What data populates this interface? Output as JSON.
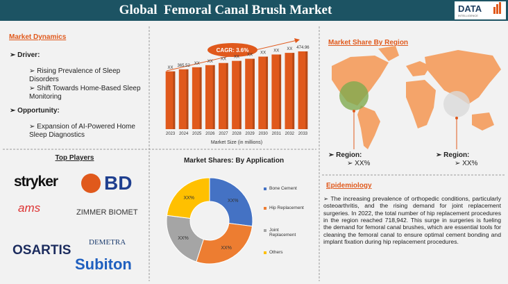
{
  "header": {
    "title": "Global  Femoral Canal Brush Market",
    "logo": "DATA",
    "logo_sub": "INTELLIGENCE"
  },
  "market_dynamics": {
    "title": "Market Dynamics",
    "driver": "Driver:",
    "drivers": [
      "Rising Prevalence of Sleep Disorders",
      "Shift Towards Home-Based Sleep Monitoring"
    ],
    "opportunity": "Opportunity:",
    "opportunities": [
      "Expansion of AI-Powered Home Sleep Diagnostics"
    ]
  },
  "chart_data": [
    {
      "type": "bar",
      "annotation": "CAGR: 3.6%",
      "x_label": "Market Size (in millions)",
      "color": "#e0591c",
      "categories": [
        "2023",
        "2024",
        "2025",
        "2026",
        "2027",
        "2028",
        "2029",
        "2030",
        "2031",
        "2032",
        "2033"
      ],
      "values": [
        353,
        365.52,
        378,
        391,
        404,
        417,
        430,
        443,
        456,
        466,
        474.96
      ],
      "value_labels": [
        "XX",
        "365.52",
        "XX",
        "XX",
        "XX",
        "XX",
        "XX",
        "XX",
        "XX",
        "XX",
        "474.96"
      ]
    },
    {
      "type": "donut",
      "title": "Market Shares: By Application",
      "categories": [
        "Bone Cement",
        "Hip Replacement",
        "Joint Replacement",
        "Others"
      ],
      "values": [
        27,
        28,
        22,
        23
      ],
      "value_labels": [
        "XX%",
        "XX%",
        "XX%",
        "XX%"
      ],
      "colors": [
        "#4472c4",
        "#ed7d31",
        "#a5a5a5",
        "#ffc000"
      ]
    }
  ],
  "top_players": {
    "title": "Top Players",
    "players": [
      "stryker",
      "BD",
      "ams",
      "ZIMMER BIOMET",
      "DEMETRA",
      "OSARTIS",
      "Subiton"
    ]
  },
  "region": {
    "title": "Market Share By Region",
    "regions": [
      {
        "label": "Region:",
        "value": "XX%"
      },
      {
        "label": "Region:",
        "value": "XX%"
      }
    ]
  },
  "epidemiology": {
    "title": "Epidemiology",
    "text": "The increasing prevalence of orthopedic conditions, particularly osteoarthritis, and the rising demand for joint replacement surgeries. In 2022, the total number of hip replacement procedures in the region reached 718,942. This surge in surgeries is fueling the demand for femoral canal brushes, which are essential tools for cleaning the femoral canal to ensure optimal cement bonding and implant fixation during hip replacement procedures."
  }
}
